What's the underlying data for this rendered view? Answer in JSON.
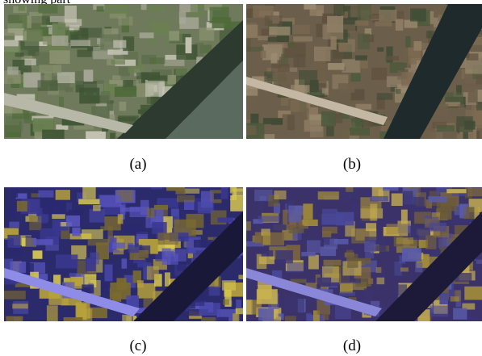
{
  "header": {
    "text": "showing part"
  },
  "figures": [
    {
      "caption": "(a)"
    },
    {
      "caption": "(b)"
    },
    {
      "caption": "(c)"
    },
    {
      "caption": "(d)"
    }
  ]
}
